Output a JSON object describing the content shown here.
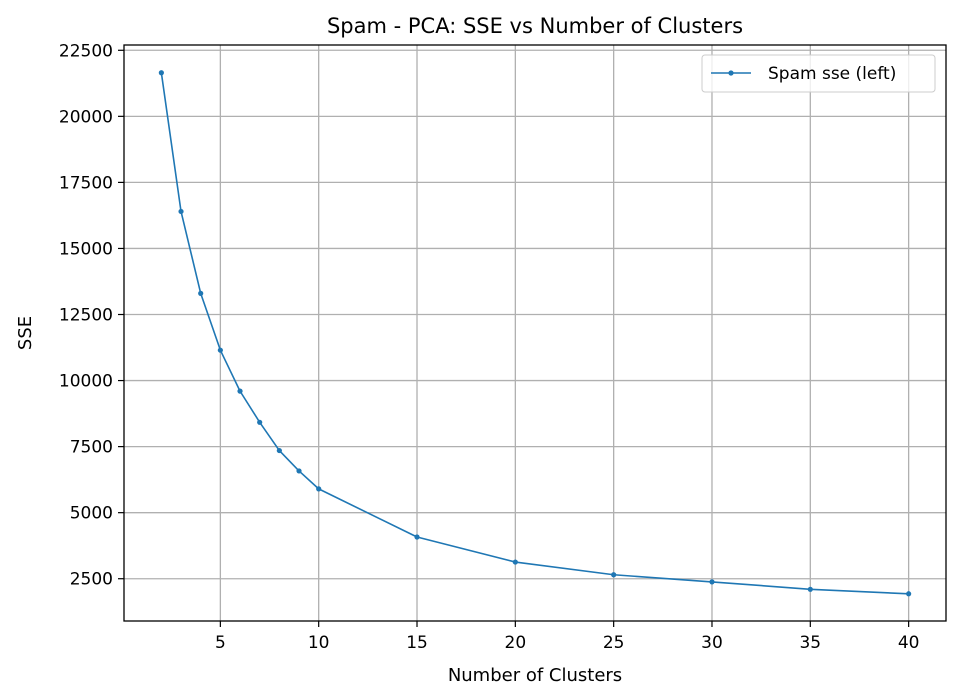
{
  "chart_data": {
    "type": "line",
    "title": "Spam - PCA: SSE vs Number of Clusters",
    "xlabel": "Number of Clusters",
    "ylabel": "SSE",
    "xlim": [
      0.1,
      41.9
    ],
    "ylim": [
      900,
      22700
    ],
    "xticks": [
      5,
      10,
      15,
      20,
      25,
      30,
      35,
      40
    ],
    "yticks": [
      2500,
      5000,
      7500,
      10000,
      12500,
      15000,
      17500,
      20000,
      22500
    ],
    "grid": true,
    "legend_position": "top-right",
    "series": [
      {
        "name": "Spam sse (left)",
        "color": "#1f77b4",
        "marker": "point",
        "x": [
          2,
          3,
          4,
          5,
          6,
          7,
          8,
          9,
          10,
          15,
          20,
          25,
          30,
          35,
          40
        ],
        "y": [
          21650,
          16400,
          13300,
          11150,
          9600,
          8420,
          7350,
          6580,
          5900,
          4080,
          3130,
          2650,
          2380,
          2100,
          1930
        ]
      }
    ]
  }
}
